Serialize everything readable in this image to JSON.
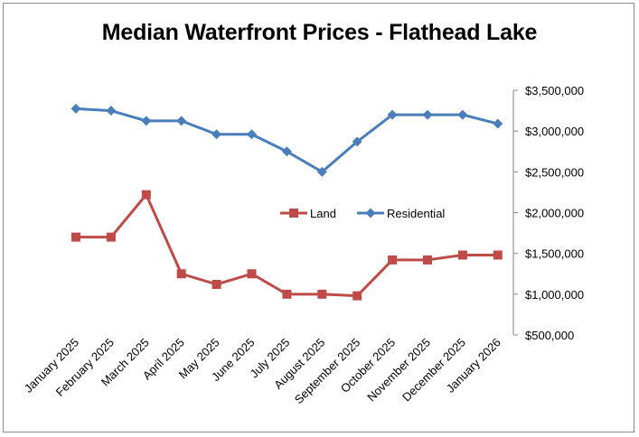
{
  "chart_data": {
    "type": "line",
    "title": "Median Waterfront Prices - Flathead Lake",
    "xlabel": "",
    "ylabel": "",
    "categories": [
      "January 2025",
      "February 2025",
      "March 2025",
      "April 2025",
      "May 2025",
      "June 2025",
      "July 2025",
      "August 2025",
      "September 2025",
      "October 2025",
      "November 2025",
      "December 2025",
      "January 2026"
    ],
    "yticks": [
      500000,
      1000000,
      1500000,
      2000000,
      2500000,
      3000000,
      3500000
    ],
    "ytick_labels": [
      "$500,000",
      "$1,000,000",
      "$1,500,000",
      "$2,000,000",
      "$2,500,000",
      "$3,000,000",
      "$3,500,000"
    ],
    "ylim": [
      500000,
      3500000
    ],
    "y_axis_side": "right",
    "grid": false,
    "legend_position": "center",
    "series": [
      {
        "name": "Land",
        "color": "#be4b48",
        "marker": "square",
        "values": [
          1700000,
          1700000,
          2220000,
          1250000,
          1120000,
          1250000,
          1000000,
          1000000,
          980000,
          1420000,
          1420000,
          1480000,
          1480000
        ]
      },
      {
        "name": "Residential",
        "color": "#4a7ebb",
        "marker": "diamond",
        "values": [
          3275000,
          3250000,
          3125000,
          3125000,
          2960000,
          2960000,
          2750000,
          2500000,
          2870000,
          3200000,
          3200000,
          3200000,
          3090000
        ]
      }
    ]
  }
}
